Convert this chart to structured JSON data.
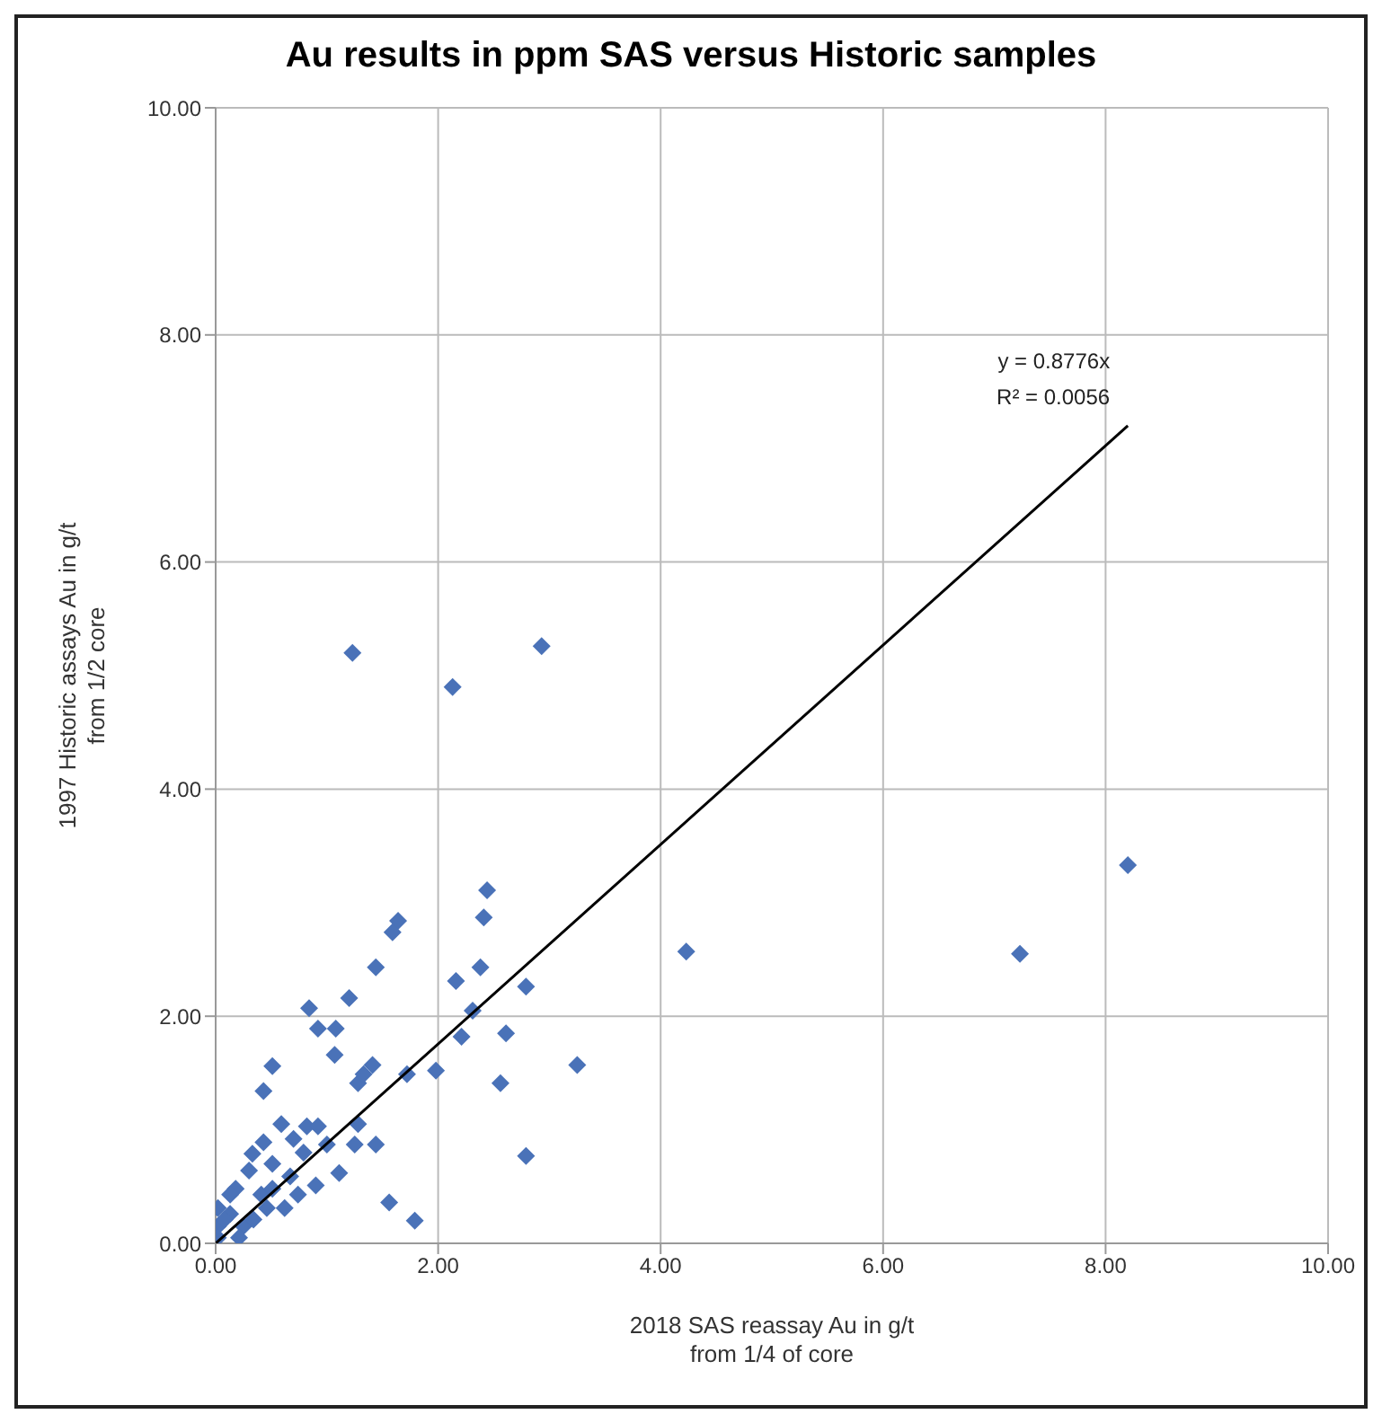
{
  "chart_data": {
    "type": "scatter",
    "title": "Au results in ppm SAS versus Historic samples",
    "xlabel": "2018 SAS reassay Au in g/t\nfrom 1/4 of core",
    "ylabel": "1997  Historic assays Au in g/t\nfrom 1/2 core",
    "xlim": [
      0,
      10
    ],
    "ylim": [
      0,
      10
    ],
    "xticks": [
      {
        "value": 0,
        "label": "0.00"
      },
      {
        "value": 2,
        "label": "2.00"
      },
      {
        "value": 4,
        "label": "4.00"
      },
      {
        "value": 6,
        "label": "6.00"
      },
      {
        "value": 8,
        "label": "8.00"
      },
      {
        "value": 10,
        "label": "10.00"
      }
    ],
    "yticks": [
      {
        "value": 0,
        "label": "0.00"
      },
      {
        "value": 2,
        "label": "2.00"
      },
      {
        "value": 4,
        "label": "4.00"
      },
      {
        "value": 6,
        "label": "6.00"
      },
      {
        "value": 8,
        "label": "8.00"
      },
      {
        "value": 10,
        "label": "10.00"
      }
    ],
    "grid": true,
    "marker": "diamond",
    "annotations": [
      "y = 0.8776x",
      "R² = 0.0056"
    ],
    "series": [
      {
        "color": "#4a72b8",
        "x": [
          1.23,
          2.13,
          2.93,
          2.44,
          2.41,
          1.64,
          1.59,
          1.44,
          1.2,
          0.84,
          0.92,
          1.08,
          2.16,
          2.38,
          2.79,
          2.31,
          2.21,
          2.61,
          4.23,
          3.25,
          2.56,
          2.79,
          1.98,
          1.72,
          1.07,
          0.51,
          0.43,
          1.28,
          1.41,
          1.33,
          1.28,
          1.44,
          1.56,
          1.79,
          1.25,
          0.59,
          0.82,
          0.92,
          0.43,
          0.33,
          0.7,
          0.79,
          1.0,
          1.11,
          0.9,
          0.67,
          0.51,
          0.3,
          0.18,
          0.41,
          0.62,
          0.74,
          0.02,
          0.13,
          0.25,
          0.34,
          0.46,
          0.02,
          0.02,
          0.21,
          0.51,
          0.13,
          0.08,
          7.23,
          8.2
        ],
        "values": [
          5.2,
          4.9,
          5.26,
          3.11,
          2.87,
          2.84,
          2.74,
          2.43,
          2.16,
          2.07,
          1.89,
          1.89,
          2.31,
          2.43,
          2.26,
          2.05,
          1.82,
          1.85,
          2.57,
          1.57,
          1.41,
          0.77,
          1.52,
          1.49,
          1.66,
          1.56,
          1.34,
          1.41,
          1.57,
          1.49,
          1.05,
          0.87,
          0.36,
          0.2,
          0.87,
          1.05,
          1.03,
          1.03,
          0.89,
          0.79,
          0.92,
          0.8,
          0.87,
          0.62,
          0.51,
          0.59,
          0.7,
          0.64,
          0.48,
          0.43,
          0.31,
          0.43,
          0.31,
          0.26,
          0.15,
          0.21,
          0.31,
          0.15,
          0.05,
          0.05,
          0.48,
          0.43,
          0.21,
          2.55,
          3.33
        ]
      },
      {
        "type": "line",
        "color": "#000000",
        "marker": "none",
        "x": [
          0,
          8.2
        ],
        "values": [
          0,
          7.2
        ]
      }
    ]
  }
}
